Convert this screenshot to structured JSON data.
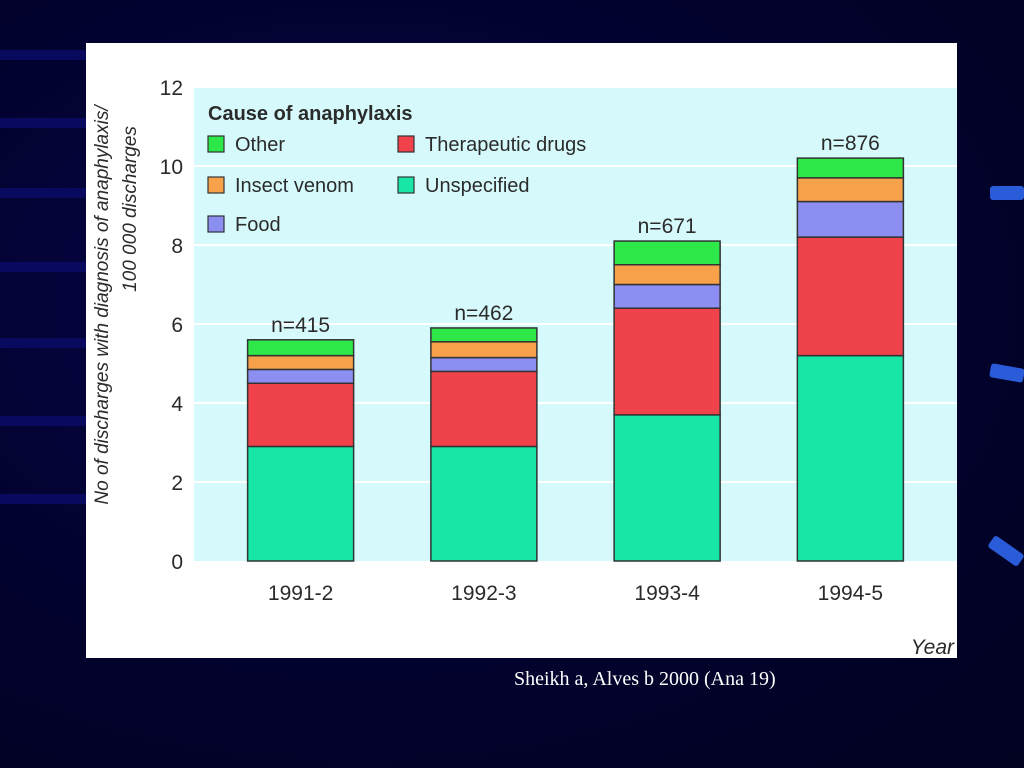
{
  "slide": {
    "caption": "Sheikh a, Alves b 2000 (Ana 19)"
  },
  "chart_data": {
    "type": "bar",
    "stacked": true,
    "categories": [
      "1991-2",
      "1992-3",
      "1993-4",
      "1994-5"
    ],
    "annotations": [
      "n=415",
      "n=462",
      "n=671",
      "n=876"
    ],
    "series": [
      {
        "name": "Unspecified",
        "color": "#17e6a6",
        "values": [
          2.9,
          2.9,
          3.7,
          5.2
        ]
      },
      {
        "name": "Therapeutic drugs",
        "color": "#f0424a",
        "values": [
          1.6,
          1.9,
          2.7,
          3.0
        ]
      },
      {
        "name": "Food",
        "color": "#8c8ef2",
        "values": [
          0.35,
          0.35,
          0.6,
          0.9
        ]
      },
      {
        "name": "Insect venom",
        "color": "#f7a24a",
        "values": [
          0.35,
          0.4,
          0.5,
          0.6
        ]
      },
      {
        "name": "Other",
        "color": "#2ee84a",
        "values": [
          0.4,
          0.35,
          0.6,
          0.5
        ]
      }
    ],
    "legend_title": "Cause of anaphylaxis",
    "legend_order": [
      "Other",
      "Therapeutic drugs",
      "Insect venom",
      "Unspecified",
      "Food"
    ],
    "legend_position": "top-left",
    "ylabel_line1": "No of discharges with diagnosis of anaphylaxis/",
    "ylabel_line2": "100 000 discharges",
    "xlabel": "Year",
    "ylim": [
      0,
      12
    ],
    "yticks": [
      0,
      2,
      4,
      6,
      8,
      10,
      12
    ],
    "grid": true,
    "plot_background": "#d6fafc",
    "grid_color": "#ffffff"
  }
}
